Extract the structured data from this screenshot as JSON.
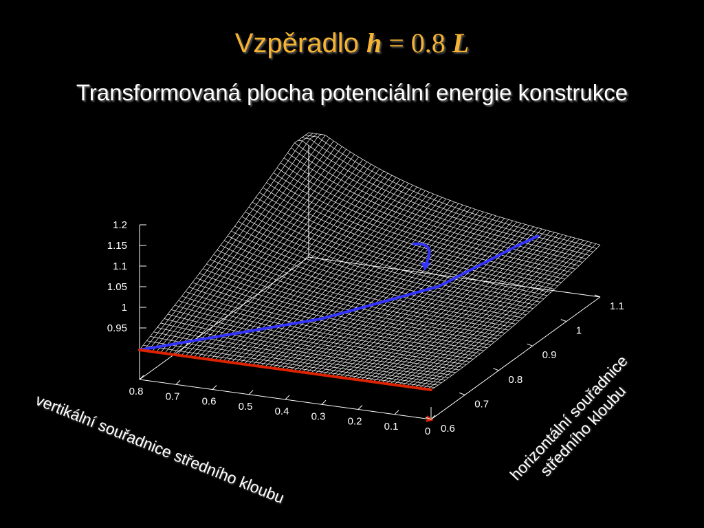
{
  "slide": {
    "title_word": "Vzpěradlo",
    "title_formula": {
      "var": "h",
      "op": " = 0.8 ",
      "unit": "L"
    },
    "subtitle": "Transformovaná plocha potenciální energie konstrukce"
  },
  "chart_data": {
    "type": "surface",
    "title": "Transformovaná plocha potenciální energie konstrukce",
    "x_axis": {
      "label": "vertikální souřadnice středního kloubu",
      "range": [
        0,
        0.8
      ],
      "ticks": [
        "0",
        "0.1",
        "0.2",
        "0.3",
        "0.4",
        "0.5",
        "0.6",
        "0.7",
        "0.8"
      ]
    },
    "y_axis": {
      "label": "horizontální souřadnice středního kloubu",
      "range": [
        0.6,
        1.1
      ],
      "ticks": [
        "0.6",
        "0.7",
        "0.8",
        "0.9",
        "1",
        "1.1"
      ]
    },
    "z_axis": {
      "label": "",
      "range": [
        0.95,
        1.2
      ],
      "ticks": [
        "0.95",
        "1",
        "1.05",
        "1.1",
        "1.15",
        "1.2"
      ]
    },
    "grid": false,
    "colors": {
      "background": "#000000",
      "surface": "#ffffff",
      "path_blue": "#3333ff",
      "path_red": "#dd2200",
      "title": "#f5b330",
      "text": "#ffffff"
    },
    "paths": [
      {
        "color": "blue",
        "points": [
          {
            "x": 0.8,
            "y": 0.6,
            "z": 1.0
          },
          {
            "x": 0.44,
            "y": 0.75,
            "z": 1.03
          },
          {
            "x": 0.22,
            "y": 0.86,
            "z": 1.07
          },
          {
            "x": 0.09,
            "y": 0.95,
            "z": 1.13
          },
          {
            "x": 0.06,
            "y": 0.98,
            "z": 1.14
          }
        ]
      },
      {
        "color": "red",
        "points": [
          {
            "x": 0.8,
            "y": 0.6,
            "z": 1.0
          },
          {
            "x": 0.0,
            "y": 0.6,
            "z": 1.0
          }
        ]
      }
    ]
  }
}
